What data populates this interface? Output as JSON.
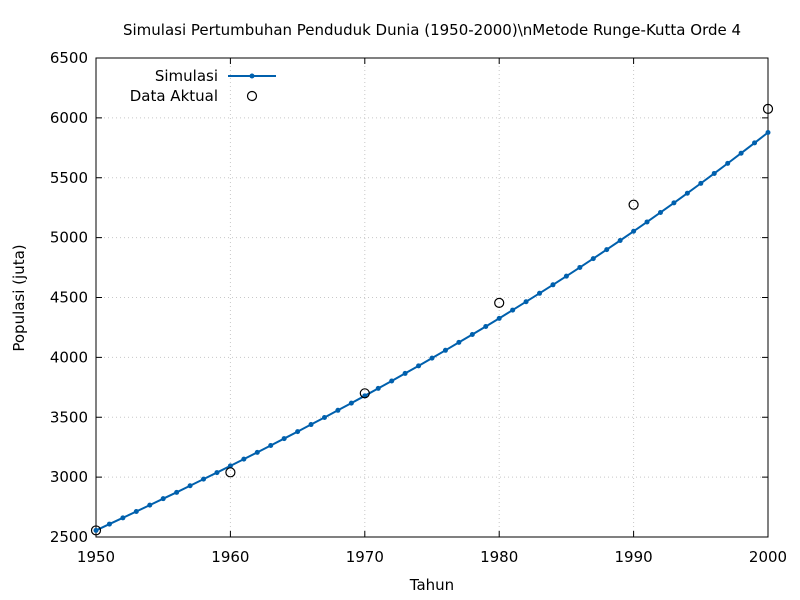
{
  "chart_data": {
    "type": "line",
    "title": "Simulasi Pertumbuhan Penduduk Dunia (1950-2000)\\nMetode Runge-Kutta Orde 4",
    "xlabel": "Tahun",
    "ylabel": "Populasi (juta)",
    "xlim": [
      1950,
      2000
    ],
    "ylim": [
      2500,
      6500
    ],
    "xticks": [
      1950,
      1960,
      1970,
      1980,
      1990,
      2000
    ],
    "yticks": [
      2500,
      3000,
      3500,
      4000,
      4500,
      5000,
      5500,
      6000,
      6500
    ],
    "grid": true,
    "legend_position": "top-left",
    "series": [
      {
        "name": "Simulasi",
        "style": "line-with-points",
        "color": "#0060ad",
        "x": [
          1950,
          1951,
          1952,
          1953,
          1954,
          1955,
          1956,
          1957,
          1958,
          1959,
          1960,
          1961,
          1962,
          1963,
          1964,
          1965,
          1966,
          1967,
          1968,
          1969,
          1970,
          1971,
          1972,
          1973,
          1974,
          1975,
          1976,
          1977,
          1978,
          1979,
          1980,
          1981,
          1982,
          1983,
          1984,
          1985,
          1986,
          1987,
          1988,
          1989,
          1990,
          1991,
          1992,
          1993,
          1994,
          1995,
          1996,
          1997,
          1998,
          1999,
          2000
        ],
        "y": [
          2555,
          2608,
          2660,
          2713,
          2766,
          2820,
          2873,
          2928,
          2983,
          3038,
          3094,
          3150,
          3207,
          3264,
          3322,
          3380,
          3439,
          3498,
          3558,
          3618,
          3679,
          3741,
          3803,
          3866,
          3929,
          3994,
          4059,
          4125,
          4191,
          4258,
          4326,
          4395,
          4465,
          4535,
          4606,
          4678,
          4751,
          4825,
          4900,
          4976,
          5053,
          5131,
          5210,
          5290,
          5371,
          5453,
          5536,
          5620,
          5705,
          5791,
          5878
        ]
      },
      {
        "name": "Data Aktual",
        "style": "open-circles",
        "color": "#000000",
        "x": [
          1950,
          1960,
          1970,
          1980,
          1990,
          2000
        ],
        "y": [
          2555,
          3040,
          3700,
          4455,
          5275,
          6075
        ]
      }
    ]
  }
}
